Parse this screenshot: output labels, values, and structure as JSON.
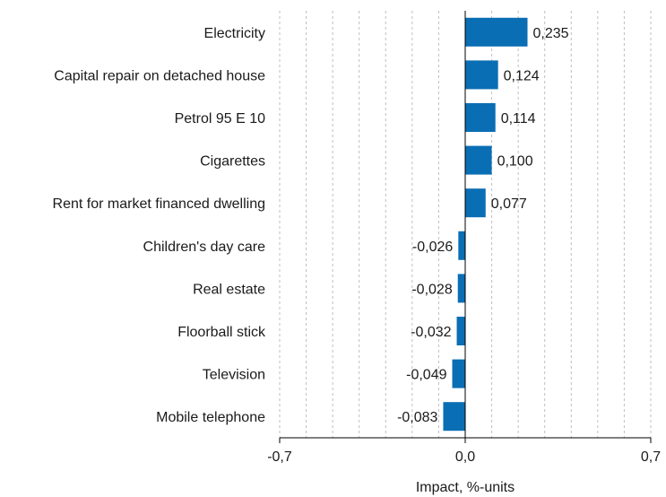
{
  "chart_data": {
    "type": "bar",
    "orientation": "horizontal",
    "categories": [
      "Electricity",
      "Capital repair on detached house",
      "Petrol 95 E 10",
      "Cigarettes",
      "Rent for market financed dwelling",
      "Children's day care",
      "Real estate",
      "Floorball stick",
      "Television",
      "Mobile telephone"
    ],
    "values": [
      0.235,
      0.124,
      0.114,
      0.1,
      0.077,
      -0.026,
      -0.028,
      -0.032,
      -0.049,
      -0.083
    ],
    "value_labels": [
      "0,235",
      "0,124",
      "0,114",
      "0,100",
      "0,077",
      "-0,026",
      "-0,028",
      "-0,032",
      "-0,049",
      "-0,083"
    ],
    "xlabel": "Impact, %-units",
    "xlim": [
      -0.7,
      0.7
    ],
    "x_ticks": [
      -0.7,
      0.0,
      0.7
    ],
    "x_tick_labels": [
      "-0,7",
      "0,0",
      "0,7"
    ],
    "grid": "vertical dashed, every 0.1",
    "bar_color": "#0a6eb4",
    "legend": "none"
  }
}
